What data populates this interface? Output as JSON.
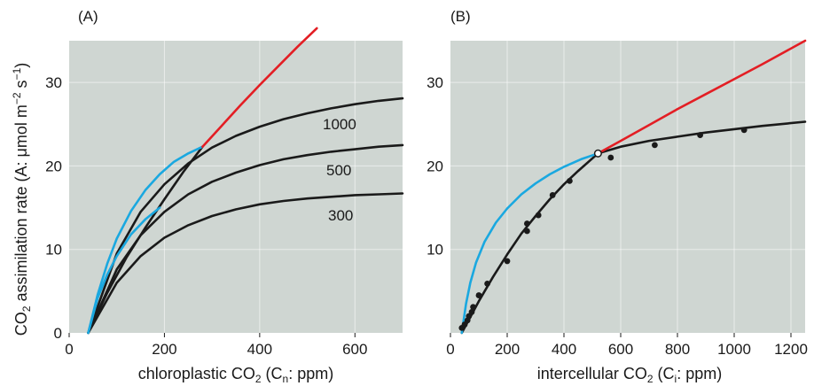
{
  "ylabel": {
    "pre": "CO",
    "sub": "2",
    "mid": " assimilation rate (A: μmol m",
    "sup1": "−2",
    "mid2": " s",
    "sup2": "−1",
    "post": ")"
  },
  "colors": {
    "background": "#cfd6d2",
    "black": "#1a1a1a",
    "blue": "#1aa8e0",
    "red": "#e31e24",
    "grid": "#ffffff"
  },
  "chart_data": [
    {
      "type": "line",
      "panel_label": "(A)",
      "xlabel": {
        "pre": "chloroplastic CO",
        "sub1": "2",
        "mid": " (C",
        "sub2": "n",
        "post": ": ppm)"
      },
      "xlim": [
        0,
        700
      ],
      "ylim": [
        0,
        35
      ],
      "xticks": [
        0,
        200,
        400,
        600
      ],
      "yticks": [
        0,
        10,
        20,
        30
      ],
      "grid": true,
      "series": [
        {
          "name": "1000",
          "color": "black",
          "x": [
            40,
            100,
            150,
            200,
            250,
            300,
            350,
            400,
            450,
            500,
            550,
            600,
            650,
            700
          ],
          "y": [
            0,
            9.5,
            14.5,
            17.8,
            20.3,
            22.2,
            23.6,
            24.7,
            25.6,
            26.3,
            26.9,
            27.4,
            27.8,
            28.1
          ]
        },
        {
          "name": "500",
          "color": "black",
          "x": [
            40,
            100,
            150,
            200,
            250,
            300,
            350,
            400,
            450,
            500,
            550,
            600,
            650,
            700
          ],
          "y": [
            0,
            7.6,
            11.7,
            14.5,
            16.6,
            18.1,
            19.2,
            20.1,
            20.8,
            21.3,
            21.7,
            22.0,
            22.3,
            22.5
          ]
        },
        {
          "name": "300",
          "color": "black",
          "x": [
            40,
            100,
            150,
            200,
            250,
            300,
            350,
            400,
            450,
            500,
            550,
            600,
            650,
            700
          ],
          "y": [
            0,
            6.0,
            9.2,
            11.4,
            12.9,
            14.0,
            14.8,
            15.4,
            15.8,
            16.1,
            16.3,
            16.5,
            16.6,
            16.7
          ]
        },
        {
          "name": "",
          "color": "black",
          "x": [
            40,
            80,
            120,
            160,
            200,
            240,
            280
          ],
          "y": [
            0,
            4.8,
            9.0,
            12.6,
            16.0,
            19.3,
            22.3
          ]
        },
        {
          "name": "",
          "color": "blue",
          "x": [
            40,
            60,
            80,
            100,
            130,
            160,
            190,
            220,
            250,
            280
          ],
          "y": [
            0,
            4.6,
            8.3,
            11.3,
            14.6,
            17.1,
            19.0,
            20.5,
            21.5,
            22.3
          ]
        },
        {
          "name": "",
          "color": "blue",
          "x": [
            40,
            60,
            80,
            100,
            130,
            160,
            190
          ],
          "y": [
            0,
            4.2,
            7.0,
            9.2,
            11.8,
            13.6,
            15.0
          ]
        },
        {
          "name": "",
          "color": "red",
          "x": [
            280,
            320,
            360,
            400,
            440,
            480,
            520
          ],
          "y": [
            22.3,
            24.8,
            27.3,
            29.7,
            32.0,
            34.3,
            36.5
          ]
        }
      ],
      "annotations": [
        "1000",
        "500",
        "300"
      ]
    },
    {
      "type": "line",
      "panel_label": "(B)",
      "xlabel": {
        "pre": "intercellular CO",
        "sub1": "2",
        "mid": " (C",
        "sub2": "i",
        "post": ": ppm)"
      },
      "xlim": [
        0,
        1250
      ],
      "ylim": [
        0,
        35
      ],
      "xticks": [
        0,
        200,
        400,
        600,
        800,
        1000,
        1200
      ],
      "yticks": [
        10,
        20,
        30
      ],
      "grid": true,
      "series": [
        {
          "name": "",
          "color": "black",
          "x": [
            40,
            100,
            150,
            200,
            250,
            300,
            350,
            400,
            450,
            520,
            600,
            700,
            800,
            900,
            1000,
            1100,
            1250
          ],
          "y": [
            0,
            3.8,
            6.7,
            9.4,
            11.9,
            14.0,
            16.0,
            17.8,
            19.4,
            21.5,
            22.3,
            23.0,
            23.5,
            24.0,
            24.4,
            24.8,
            25.3
          ]
        },
        {
          "name": "",
          "color": "blue",
          "x": [
            40,
            55,
            70,
            90,
            120,
            160,
            200,
            250,
            300,
            350,
            400,
            460,
            520
          ],
          "y": [
            0,
            3.5,
            6.0,
            8.4,
            10.9,
            13.2,
            14.9,
            16.6,
            17.9,
            19.0,
            19.9,
            20.8,
            21.5
          ]
        },
        {
          "name": "",
          "color": "red",
          "x": [
            520,
            600,
            700,
            800,
            900,
            1000,
            1100,
            1250
          ],
          "y": [
            21.5,
            23.0,
            24.9,
            26.8,
            28.6,
            30.4,
            32.2,
            35.0
          ]
        }
      ],
      "points": {
        "x": [
          40,
          50,
          60,
          65,
          75,
          80,
          100,
          130,
          200,
          270,
          270,
          310,
          360,
          420,
          565,
          720,
          880,
          1035
        ],
        "y": [
          0.6,
          1.0,
          1.5,
          2.0,
          2.5,
          3.1,
          4.5,
          5.9,
          8.6,
          12.2,
          13.1,
          14.1,
          16.5,
          18.2,
          21.0,
          22.5,
          23.7,
          24.3
        ]
      },
      "open_point": {
        "x": 520,
        "y": 21.5
      }
    }
  ]
}
